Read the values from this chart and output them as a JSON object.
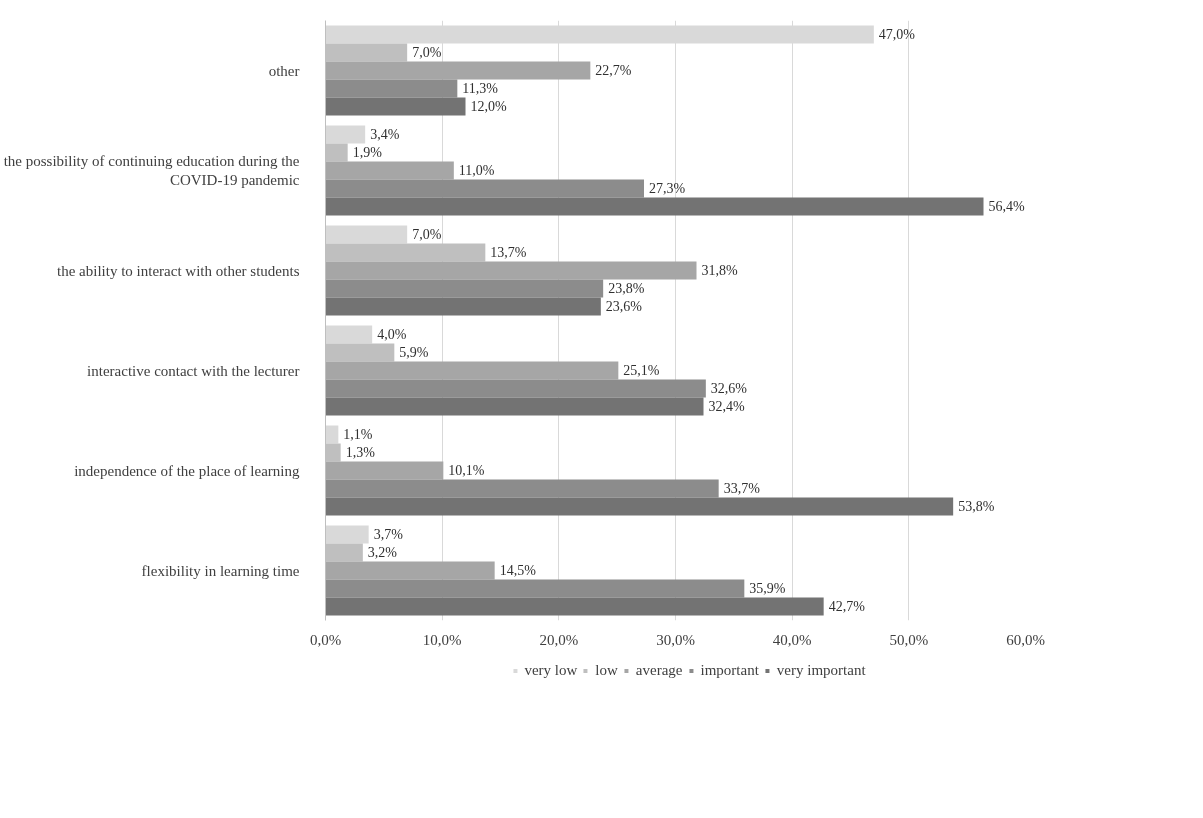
{
  "chart_data": {
    "type": "bar",
    "orientation": "horizontal",
    "categories": [
      "other",
      "the possibility of continuing education during the COVID-19 pandemic",
      "the ability to interact with other students",
      "interactive contact with the lecturer",
      "independence of the place of learning",
      "flexibility in learning time"
    ],
    "series": [
      {
        "name": "very low",
        "color": "#d9d9d9",
        "values": [
          47.0,
          3.4,
          7.0,
          4.0,
          1.1,
          3.7
        ],
        "value_labels": [
          "47,0%",
          "3,4%",
          "7,0%",
          "4,0%",
          "1,1%",
          "3,7%"
        ]
      },
      {
        "name": "low",
        "color": "#bfbfbf",
        "values": [
          7.0,
          1.9,
          13.7,
          5.9,
          1.3,
          3.2
        ],
        "value_labels": [
          "7,0%",
          "1,9%",
          "13,7%",
          "5,9%",
          "1,3%",
          "3,2%"
        ]
      },
      {
        "name": "average",
        "color": "#a6a6a6",
        "values": [
          22.7,
          11.0,
          31.8,
          25.1,
          10.1,
          14.5
        ],
        "value_labels": [
          "22,7%",
          "11,0%",
          "31,8%",
          "25,1%",
          "10,1%",
          "14,5%"
        ]
      },
      {
        "name": "important",
        "color": "#8c8c8c",
        "values": [
          11.3,
          27.3,
          23.8,
          32.6,
          33.7,
          35.9
        ],
        "value_labels": [
          "11,3%",
          "27,3%",
          "23,8%",
          "32,6%",
          "33,7%",
          "35,9%"
        ]
      },
      {
        "name": "very important",
        "color": "#737373",
        "values": [
          12.0,
          56.4,
          23.6,
          32.4,
          53.8,
          42.7
        ],
        "value_labels": [
          "12,0%",
          "56,4%",
          "23,6%",
          "32,4%",
          "53,8%",
          "42,7%"
        ]
      }
    ],
    "xlim": [
      0,
      60
    ],
    "xticks": [
      {
        "value": 0,
        "label": "0,0%"
      },
      {
        "value": 10,
        "label": "10,0%"
      },
      {
        "value": 20,
        "label": "20,0%"
      },
      {
        "value": 30,
        "label": "30,0%"
      },
      {
        "value": 40,
        "label": "40,0%"
      },
      {
        "value": 50,
        "label": "50,0%"
      },
      {
        "value": 60,
        "label": "60,0%"
      }
    ],
    "grid": "x",
    "legend": "bottom"
  }
}
